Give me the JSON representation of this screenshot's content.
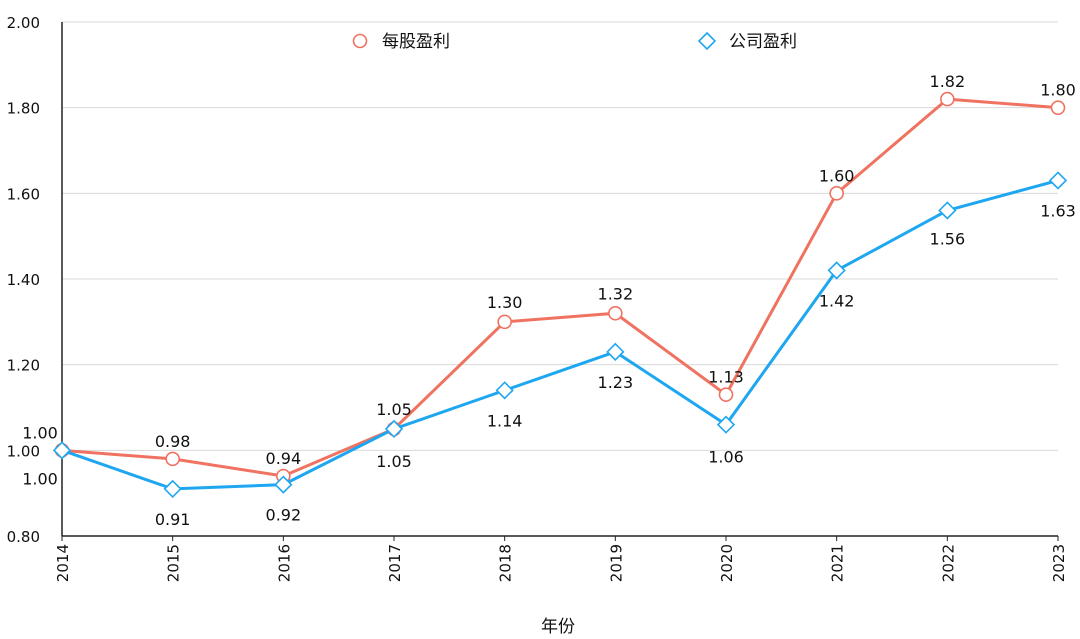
{
  "chart_data": {
    "type": "line",
    "title": "",
    "xlabel": "年份",
    "ylabel": "",
    "ylim": [
      0.8,
      2.0
    ],
    "yticks": [
      "0.80",
      "1.00",
      "1.20",
      "1.40",
      "1.60",
      "1.80",
      "2.00"
    ],
    "categories": [
      "2014",
      "2015",
      "2016",
      "2017",
      "2018",
      "2019",
      "2020",
      "2021",
      "2022",
      "2023"
    ],
    "grid": true,
    "legend_position": "top-center",
    "series": [
      {
        "name": "每股盈利",
        "color": "#f07260",
        "marker": "circle",
        "values": [
          1.0,
          0.98,
          0.94,
          1.05,
          1.3,
          1.32,
          1.13,
          1.6,
          1.82,
          1.8
        ],
        "labels": [
          "1.00",
          "0.98",
          "0.94",
          "1.05",
          "1.30",
          "1.32",
          "1.13",
          "1.60",
          "1.82",
          "1.80"
        ]
      },
      {
        "name": "公司盈利",
        "color": "#1ea7f0",
        "marker": "diamond",
        "values": [
          1.0,
          0.91,
          0.92,
          1.05,
          1.14,
          1.23,
          1.06,
          1.42,
          1.56,
          1.63
        ],
        "labels": [
          "1.00",
          "0.91",
          "0.92",
          "1.05",
          "1.14",
          "1.23",
          "1.06",
          "1.42",
          "1.56",
          "1.63"
        ]
      }
    ]
  }
}
